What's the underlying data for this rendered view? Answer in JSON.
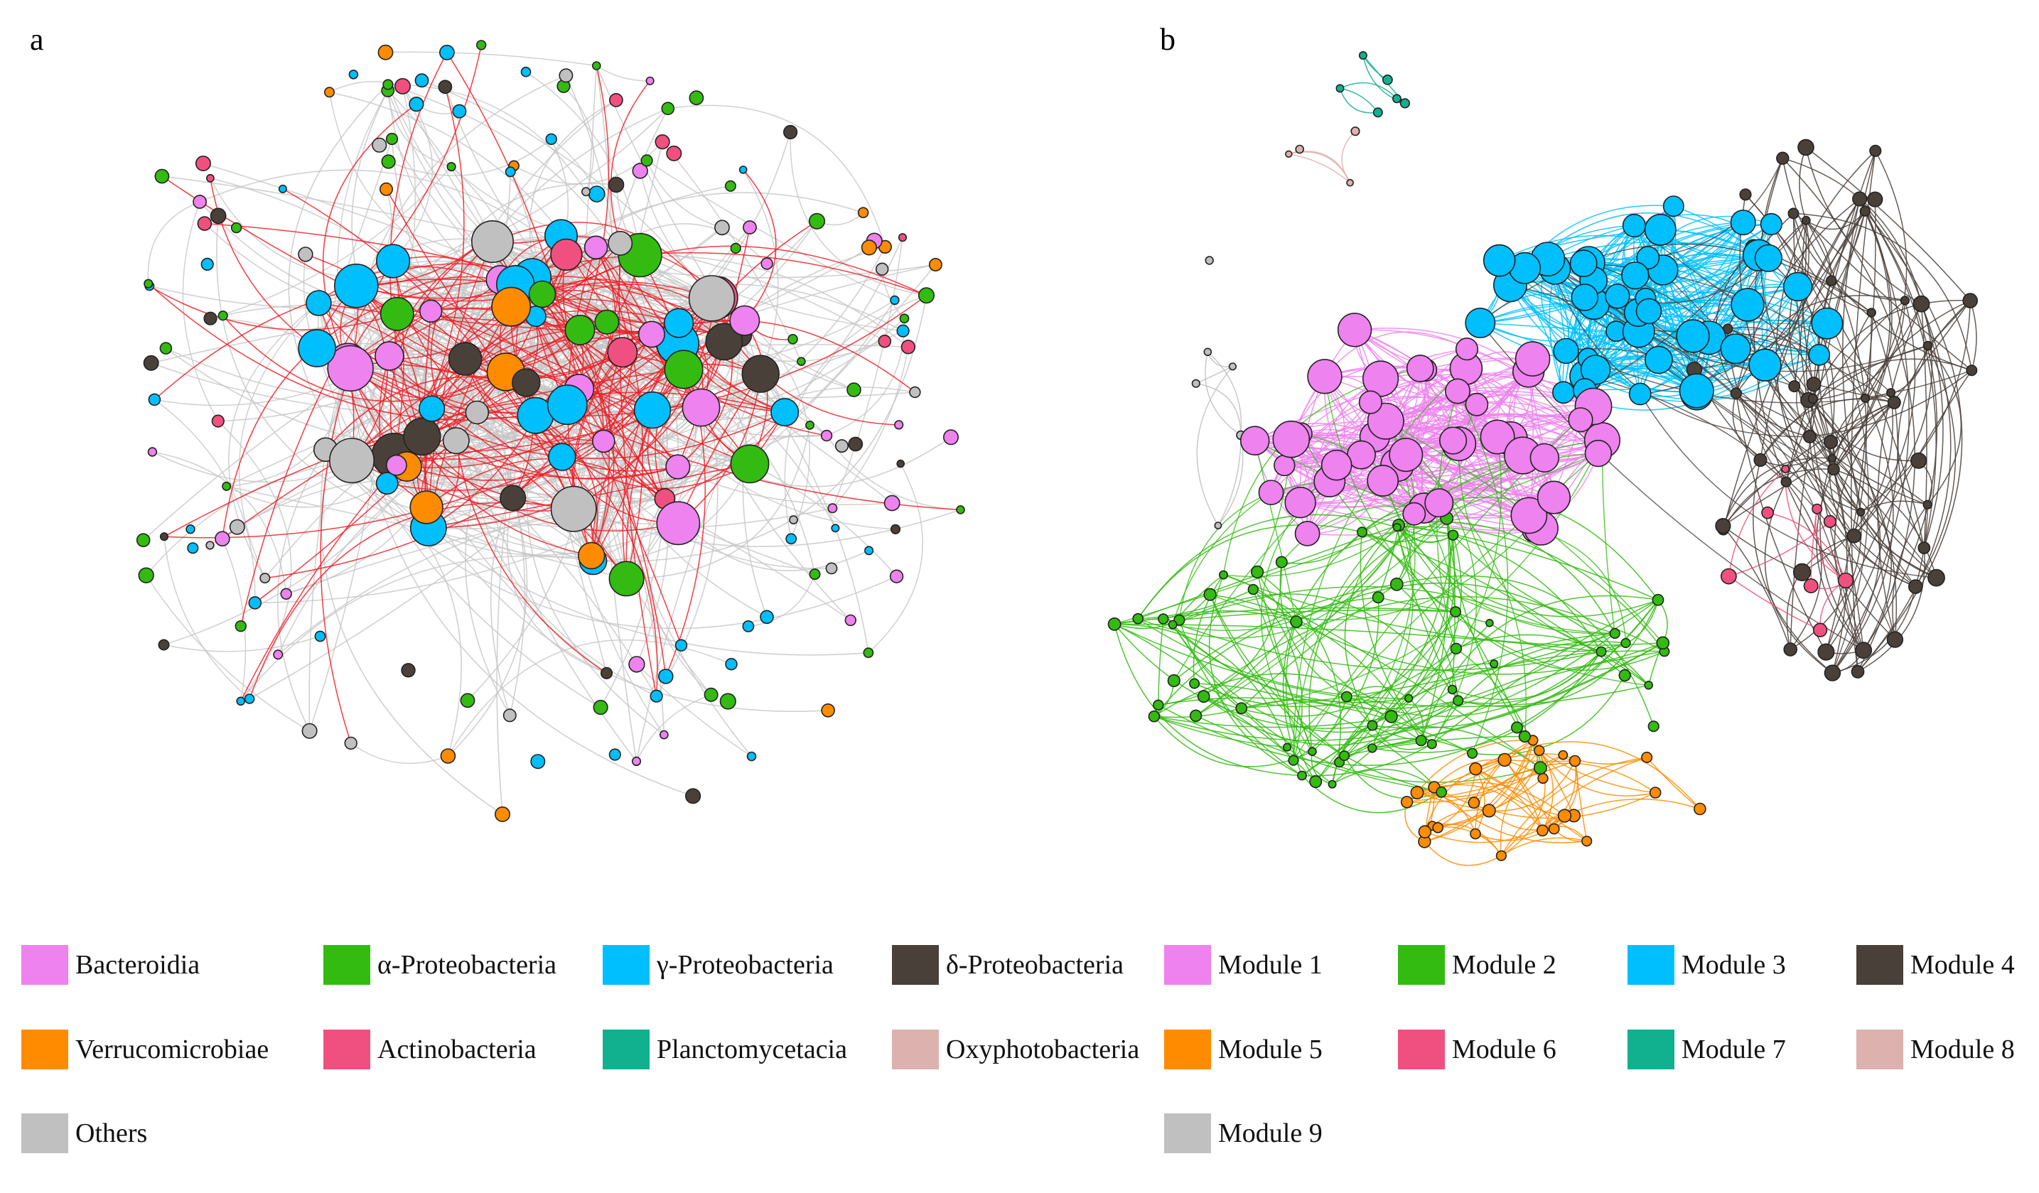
{
  "panels": [
    {
      "label": "a",
      "title": ""
    },
    {
      "label": "b",
      "title": ""
    }
  ],
  "colors": {
    "Bacteroidia": "#ee82ee",
    "alpha": "#33bb11",
    "gamma": "#00bfff",
    "delta": "#4a403a",
    "Verrucomicrobiae": "#ff8c00",
    "Actinobacteria": "#f0507f",
    "Planctomycetacia": "#11b08f",
    "Oxyphotobacteria": "#ddb1ad",
    "Others": "#c0c0c0",
    "edge_positive": "#ee1c24",
    "edge_negative": "#c6c6c6"
  },
  "legend_a": [
    {
      "label": "Bacteroidia",
      "color": "#ee82ee"
    },
    {
      "label": "α-Proteobacteria",
      "color": "#33bb11"
    },
    {
      "label": "γ-Proteobacteria",
      "color": "#00bfff"
    },
    {
      "label": "δ-Proteobacteria",
      "color": "#4a403a"
    },
    {
      "label": "Verrucomicrobiae",
      "color": "#ff8c00"
    },
    {
      "label": "Actinobacteria",
      "color": "#f0507f"
    },
    {
      "label": "Planctomycetacia",
      "color": "#11b08f"
    },
    {
      "label": "Oxyphotobacteria",
      "color": "#ddb1ad"
    },
    {
      "label": "Others",
      "color": "#c0c0c0"
    }
  ],
  "legend_b": [
    {
      "label": "Module 1",
      "color": "#ee82ee"
    },
    {
      "label": "Module 2",
      "color": "#33bb11"
    },
    {
      "label": "Module 3",
      "color": "#00bfff"
    },
    {
      "label": "Module 4",
      "color": "#4a403a"
    },
    {
      "label": "Module 5",
      "color": "#ff8c00"
    },
    {
      "label": "Module 6",
      "color": "#f0507f"
    },
    {
      "label": "Module 7",
      "color": "#11b08f"
    },
    {
      "label": "Module 8",
      "color": "#ddb1ad"
    },
    {
      "label": "Module 9",
      "color": "#c0c0c0"
    }
  ]
}
